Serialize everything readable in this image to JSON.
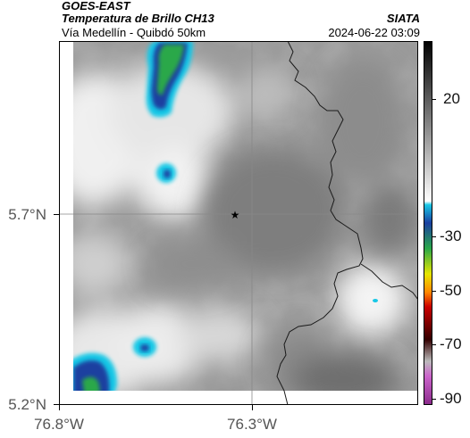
{
  "header": {
    "satellite": "GOES-EAST",
    "product": "Temperatura de Brillo CH13",
    "organization": "SIATA",
    "route": "Vía Medellín - Quibdó 50km",
    "timestamp": "2024-06-22 03:09"
  },
  "map": {
    "latitude_labels": [
      "5.7°N",
      "5.2°N"
    ],
    "longitude_labels": [
      "76.8°W",
      "76.3°W"
    ],
    "marker_icon": "star-icon",
    "colors": {
      "warm_land": "#8a8a8a",
      "cloud": "#f2f2f2",
      "cold_cyan": "#18c8e6",
      "cold_blue": "#1a3fa0",
      "cold_green": "#2aa84a",
      "border": "#222222",
      "grid": "#888888"
    }
  },
  "colorbar": {
    "tick_labels": [
      "20",
      "-30",
      "-50",
      "-70",
      "-90"
    ],
    "stops": [
      {
        "color": "#000000"
      },
      {
        "color": "#ffffff"
      },
      {
        "color": "#18c8e6"
      },
      {
        "color": "#1a3fa0"
      },
      {
        "color": "#2aa84a"
      },
      {
        "color": "#e6e600"
      },
      {
        "color": "#ff8800"
      },
      {
        "color": "#cc0000"
      },
      {
        "color": "#330000"
      },
      {
        "color": "#bbbbbb"
      },
      {
        "color": "#aa44aa"
      }
    ]
  }
}
